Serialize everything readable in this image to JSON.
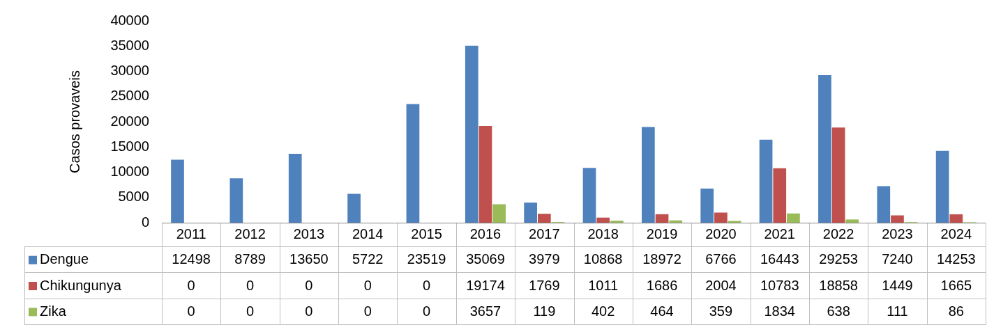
{
  "chart_data": {
    "type": "bar",
    "ylabel": "Casos provaveis",
    "categories": [
      "2011",
      "2012",
      "2013",
      "2014",
      "2015",
      "2016",
      "2017",
      "2018",
      "2019",
      "2020",
      "2021",
      "2022",
      "2023",
      "2024"
    ],
    "series": [
      {
        "name": "Dengue",
        "color": "#4f81bd",
        "values": [
          12498,
          8789,
          13650,
          5722,
          23519,
          35069,
          3979,
          10868,
          18972,
          6766,
          16443,
          29253,
          7240,
          14253
        ]
      },
      {
        "name": "Chikungunya",
        "color": "#c0504d",
        "values": [
          0,
          0,
          0,
          0,
          0,
          19174,
          1769,
          1011,
          1686,
          2004,
          10783,
          18858,
          1449,
          1665
        ]
      },
      {
        "name": "Zika",
        "color": "#9bbb59",
        "values": [
          0,
          0,
          0,
          0,
          0,
          3657,
          119,
          402,
          464,
          359,
          1834,
          638,
          111,
          86
        ]
      }
    ],
    "ylim": [
      0,
      40000
    ],
    "yticks": [
      0,
      5000,
      10000,
      15000,
      20000,
      25000,
      30000,
      35000,
      40000
    ],
    "grid": false,
    "legend": "bottom left",
    "data_labels": true
  }
}
